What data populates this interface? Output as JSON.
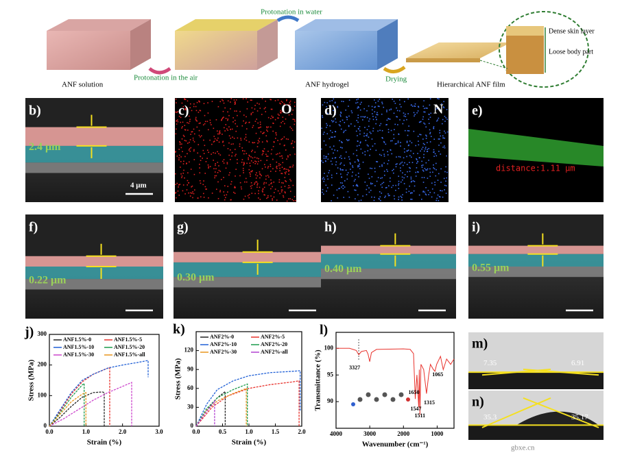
{
  "schematic": {
    "labels": [
      "ANF solution",
      "Protonation in the air",
      "Protonation in water",
      "ANF hydrogel",
      "Drying",
      "Hierarchical ANF film",
      "Dense skin layer",
      "Loose  body part"
    ]
  },
  "panels": [
    {
      "label": "b)",
      "annotation": "2.4 μm",
      "scale": "4 μm"
    },
    {
      "label": "c)",
      "element": "O"
    },
    {
      "label": "d)",
      "element": "N"
    },
    {
      "label": "e)",
      "annotation": "distance:1.11 μm"
    },
    {
      "label": "f)",
      "annotation": "0.22 μm"
    },
    {
      "label": "g)",
      "annotation": "0.30 μm"
    },
    {
      "label": "h)",
      "annotation": "0.40 μm"
    },
    {
      "label": "i)",
      "annotation": "0.55 μm"
    },
    {
      "label": "m)",
      "angles": [
        "7.35",
        "6.91"
      ]
    },
    {
      "label": "n)",
      "angles": [
        "35.3",
        "35.17"
      ]
    }
  ],
  "watermark": "gbxe.cn",
  "chart_data": [
    {
      "type": "line",
      "panel": "j)",
      "xlabel": "Strain (%)",
      "ylabel": "Stress (MPa)",
      "xlim": [
        0,
        3
      ],
      "xticks": [
        {
          "value": 0,
          "label": "0.0"
        },
        {
          "value": 1,
          "label": "1.0"
        },
        {
          "value": 2,
          "label": "2.0"
        },
        {
          "value": 3,
          "label": "3.0"
        }
      ],
      "ylim": [
        0,
        300
      ],
      "yticks": [
        0,
        100,
        200,
        300
      ],
      "series": [
        {
          "name": "ANF1.5%-0",
          "color": "#222222",
          "x": [
            0,
            0.3,
            0.6,
            0.9,
            1.2,
            1.45,
            1.5,
            1.5
          ],
          "values": [
            0,
            30,
            65,
            95,
            110,
            112,
            110,
            0
          ]
        },
        {
          "name": "ANF1.5%-5",
          "color": "#e8322c",
          "x": [
            0,
            0.3,
            0.6,
            0.9,
            1.2,
            1.5,
            1.65,
            1.65
          ],
          "values": [
            0,
            50,
            105,
            145,
            170,
            185,
            192,
            0
          ]
        },
        {
          "name": "ANF1.5%-10",
          "color": "#1f5fd6",
          "x": [
            0,
            0.3,
            0.6,
            0.9,
            1.2,
            1.6,
            2.0,
            2.4,
            2.7,
            2.7
          ],
          "values": [
            0,
            55,
            110,
            150,
            170,
            190,
            200,
            208,
            215,
            160
          ]
        },
        {
          "name": "ANF1.5%-20",
          "color": "#1a9a4a",
          "x": [
            0,
            0.3,
            0.6,
            0.9,
            0.95,
            0.95
          ],
          "values": [
            0,
            45,
            95,
            135,
            140,
            0
          ]
        },
        {
          "name": "ANF1.5%-30",
          "color": "#cc44cc",
          "x": [
            0,
            0.4,
            0.8,
            1.2,
            1.6,
            2.0,
            2.25,
            2.25
          ],
          "values": [
            0,
            25,
            55,
            85,
            110,
            130,
            143,
            0
          ]
        },
        {
          "name": "ANF1.5%-all",
          "color": "#e8961c",
          "x": [
            0,
            0.3,
            0.6,
            0.9,
            1.0,
            1.0
          ],
          "values": [
            0,
            40,
            80,
            105,
            110,
            0
          ]
        }
      ]
    },
    {
      "type": "line",
      "panel": "k)",
      "xlabel": "Strain (%)",
      "ylabel": "Stress (MPa)",
      "xlim": [
        0,
        2
      ],
      "xticks": [
        {
          "value": 0,
          "label": "0.0"
        },
        {
          "value": 0.5,
          "label": "0.5"
        },
        {
          "value": 1,
          "label": "1.0"
        },
        {
          "value": 1.5,
          "label": "1.5"
        },
        {
          "value": 2,
          "label": "2.0"
        }
      ],
      "ylim": [
        0,
        150
      ],
      "yticks": [
        0,
        30,
        60,
        90,
        120
      ],
      "series": [
        {
          "name": "ANF2%-0",
          "color": "#222222",
          "x": [
            0,
            0.2,
            0.4,
            0.55,
            0.55
          ],
          "values": [
            0,
            25,
            45,
            55,
            0
          ]
        },
        {
          "name": "ANF2%-5",
          "color": "#e8322c",
          "x": [
            0,
            0.3,
            0.6,
            1.0,
            1.4,
            1.8,
            1.95,
            1.95
          ],
          "values": [
            0,
            30,
            48,
            60,
            66,
            70,
            72,
            0
          ]
        },
        {
          "name": "ANF2%-10",
          "color": "#1f5fd6",
          "x": [
            0,
            0.2,
            0.4,
            0.7,
            1.0,
            1.4,
            1.8,
            1.97,
            1.97
          ],
          "values": [
            0,
            35,
            58,
            72,
            80,
            85,
            87,
            88,
            25
          ]
        },
        {
          "name": "ANF2%-20",
          "color": "#1a9a4a",
          "x": [
            0,
            0.2,
            0.4,
            0.7,
            0.97,
            0.97
          ],
          "values": [
            0,
            28,
            45,
            58,
            67,
            0
          ]
        },
        {
          "name": "ANF2%-30",
          "color": "#e8961c",
          "x": [
            0,
            0.2,
            0.4,
            0.7,
            0.95,
            0.95
          ],
          "values": [
            0,
            25,
            40,
            52,
            60,
            0
          ]
        },
        {
          "name": "ANF2%-all",
          "color": "#b040d0",
          "x": [
            0,
            0.15,
            0.3,
            0.35,
            0.35
          ],
          "values": [
            0,
            18,
            34,
            40,
            0
          ]
        }
      ]
    },
    {
      "type": "spectrum",
      "panel": "l)",
      "xlabel": "Wavenumber (cm⁻¹)",
      "ylabel": "Transmittance (%)",
      "xlim": [
        4000,
        500
      ],
      "xticks": [
        4000,
        3000,
        2000,
        1000
      ],
      "ylim": [
        85,
        103
      ],
      "yticks": [
        90,
        95,
        100
      ],
      "series": [
        {
          "name": "ANF",
          "color": "#e8322c",
          "x": [
            4000,
            3600,
            3500,
            3400,
            3327,
            3250,
            3100,
            3050,
            3000,
            2950,
            2800,
            2000,
            1800,
            1700,
            1650,
            1600,
            1547,
            1530,
            1511,
            1480,
            1400,
            1315,
            1250,
            1200,
            1110,
            1065,
            1015,
            900,
            820,
            720,
            600,
            500
          ],
          "values": [
            100,
            100,
            99.8,
            99.6,
            98.8,
            99.4,
            99.6,
            98.9,
            97.5,
            99.2,
            99.8,
            99.9,
            99.8,
            99,
            90.5,
            95,
            89,
            96,
            87.5,
            97,
            96,
            91.5,
            95,
            97,
            96,
            95.7,
            97,
            98.5,
            96,
            98,
            97,
            98
          ]
        }
      ],
      "peak_labels": [
        3327,
        1650,
        1547,
        1511,
        1315,
        1065
      ]
    }
  ]
}
